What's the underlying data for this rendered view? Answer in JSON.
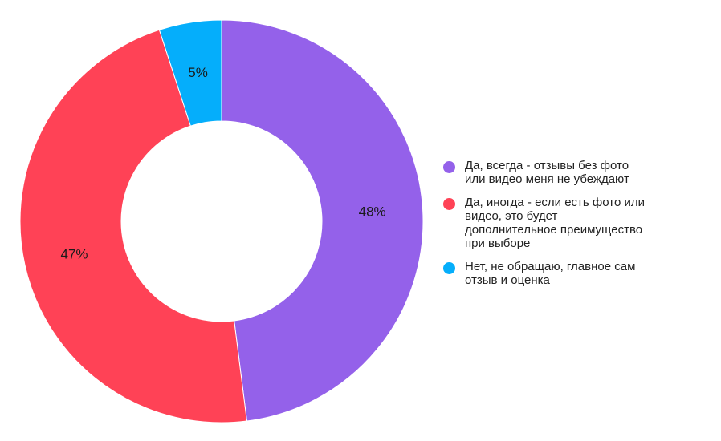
{
  "chart_data": {
    "type": "pie",
    "style": "donut",
    "title": "",
    "legend_position": "right",
    "slices": [
      {
        "name": "Да, всегда - отзывы без фото\nили видео меня не убеждают",
        "value": 48,
        "label": "48%",
        "color": "#9461ea"
      },
      {
        "name": "Да, иногда - если есть фото или\nвидео, это будет\nдополнительное преимущество\nпри выборе",
        "value": 47,
        "label": "47%",
        "color": "#ff4256"
      },
      {
        "name": "Нет, не обращаю, главное сам\nотзыв и оценка",
        "value": 5,
        "label": "5%",
        "color": "#05aefb"
      }
    ]
  }
}
